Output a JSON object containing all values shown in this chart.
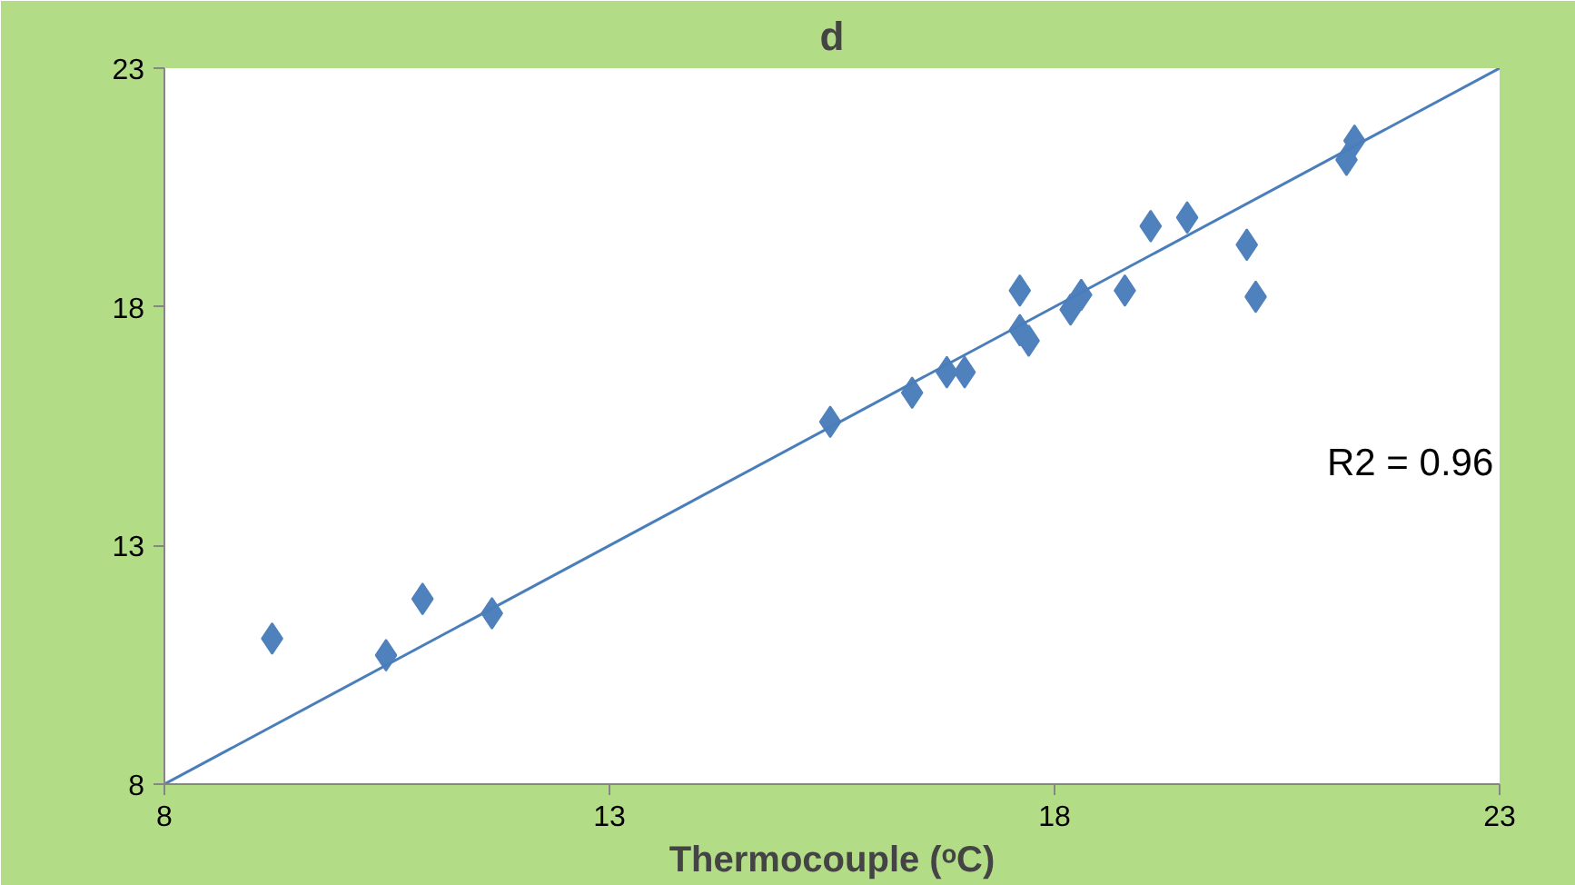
{
  "chart_data": {
    "type": "scatter",
    "title": "d",
    "xlabel": "Thermocouple (ᵒC)",
    "xlim": [
      8,
      23
    ],
    "xticks": [
      8,
      13,
      18,
      23
    ],
    "ylim": [
      8,
      23
    ],
    "yticks": [
      8,
      13,
      18,
      23
    ],
    "grid": false,
    "marker": "diamond",
    "annotations": [
      "R2 = 0.96"
    ],
    "series": [
      {
        "color": "#4f81bd",
        "x": [
          9.21,
          10.49,
          10.9,
          11.68,
          15.48,
          16.4,
          16.79,
          16.99,
          17.61,
          17.61,
          17.71,
          18.18,
          18.3,
          18.79,
          19.08,
          19.49,
          20.16,
          20.26,
          21.28,
          21.37
        ],
        "values": [
          11.05,
          10.7,
          11.88,
          11.58,
          15.59,
          16.2,
          16.63,
          16.63,
          18.34,
          17.51,
          17.29,
          17.94,
          18.25,
          18.34,
          19.69,
          19.87,
          19.3,
          18.21,
          21.08,
          21.48
        ]
      },
      {
        "type": "line",
        "marker": "none",
        "color": "#4a7ebb",
        "x": [
          8,
          23
        ],
        "values": [
          8,
          23
        ]
      }
    ]
  }
}
